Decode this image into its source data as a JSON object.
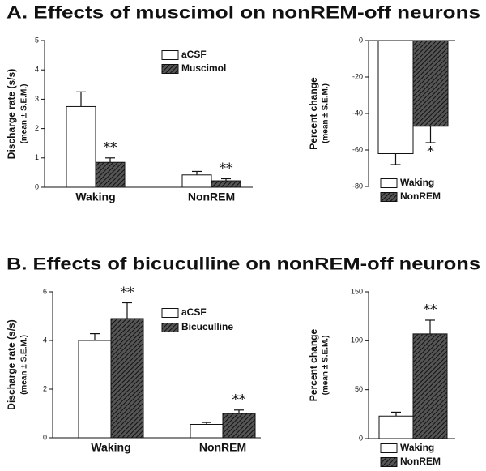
{
  "chart_data": [
    {
      "type": "bar",
      "title": "A. Effects of muscimol on nonREM-off neurons",
      "ylabel": "Discharge rate (s/s)",
      "ylabel2": "(mean ± S.E.M.)",
      "categories": [
        "Waking",
        "NonREM"
      ],
      "series": [
        {
          "name": "aCSF",
          "color": "#ffffff",
          "values": [
            2.75,
            0.42
          ],
          "errors": [
            0.5,
            0.12
          ]
        },
        {
          "name": "Muscimol",
          "color": "#333333",
          "hatch": true,
          "values": [
            0.85,
            0.22
          ],
          "errors": [
            0.15,
            0.07
          ],
          "significance": [
            "**",
            "**"
          ]
        }
      ],
      "ylim": [
        0,
        5
      ],
      "yticks": [
        0,
        1,
        2,
        3,
        4,
        5
      ],
      "legend": "upper right"
    },
    {
      "type": "bar",
      "ylabel": "Percent change",
      "ylabel2": "(mean ± S.E.M.)",
      "categories": [
        null
      ],
      "series": [
        {
          "name": "Waking",
          "color": "#ffffff",
          "values": [
            -62
          ],
          "errors": [
            6
          ]
        },
        {
          "name": "NonREM",
          "color": "#333333",
          "hatch": true,
          "values": [
            -47
          ],
          "errors": [
            9
          ],
          "significance": [
            "*"
          ]
        }
      ],
      "ylim": [
        -80,
        0
      ],
      "yticks": [
        0,
        -20,
        -40,
        -60,
        -80
      ],
      "legend": "lower left"
    },
    {
      "type": "bar",
      "title": "B. Effects of bicuculline on nonREM-off neurons",
      "ylabel": "Discharge rate (s/s)",
      "ylabel2": "(mean ± S.E.M.)",
      "categories": [
        "Waking",
        "NonREM"
      ],
      "series": [
        {
          "name": "aCSF",
          "color": "#ffffff",
          "values": [
            4.0,
            0.55
          ],
          "errors": [
            0.28,
            0.08
          ]
        },
        {
          "name": "Bicuculline",
          "color": "#333333",
          "hatch": true,
          "values": [
            4.9,
            1.0
          ],
          "errors": [
            0.65,
            0.14
          ],
          "significance": [
            "**",
            "**"
          ]
        }
      ],
      "ylim": [
        0,
        6
      ],
      "yticks": [
        0,
        2,
        4,
        6
      ],
      "legend": "upper right"
    },
    {
      "type": "bar",
      "ylabel": "Percent change",
      "ylabel2": "(mean ± S.E.M.)",
      "categories": [
        null
      ],
      "series": [
        {
          "name": "Waking",
          "color": "#ffffff",
          "values": [
            23
          ],
          "errors": [
            4
          ]
        },
        {
          "name": "NonREM",
          "color": "#333333",
          "hatch": true,
          "values": [
            107
          ],
          "errors": [
            14
          ],
          "significance": [
            "**"
          ]
        }
      ],
      "ylim": [
        0,
        150
      ],
      "yticks": [
        0,
        50,
        100,
        150
      ],
      "legend": "lower left"
    }
  ]
}
